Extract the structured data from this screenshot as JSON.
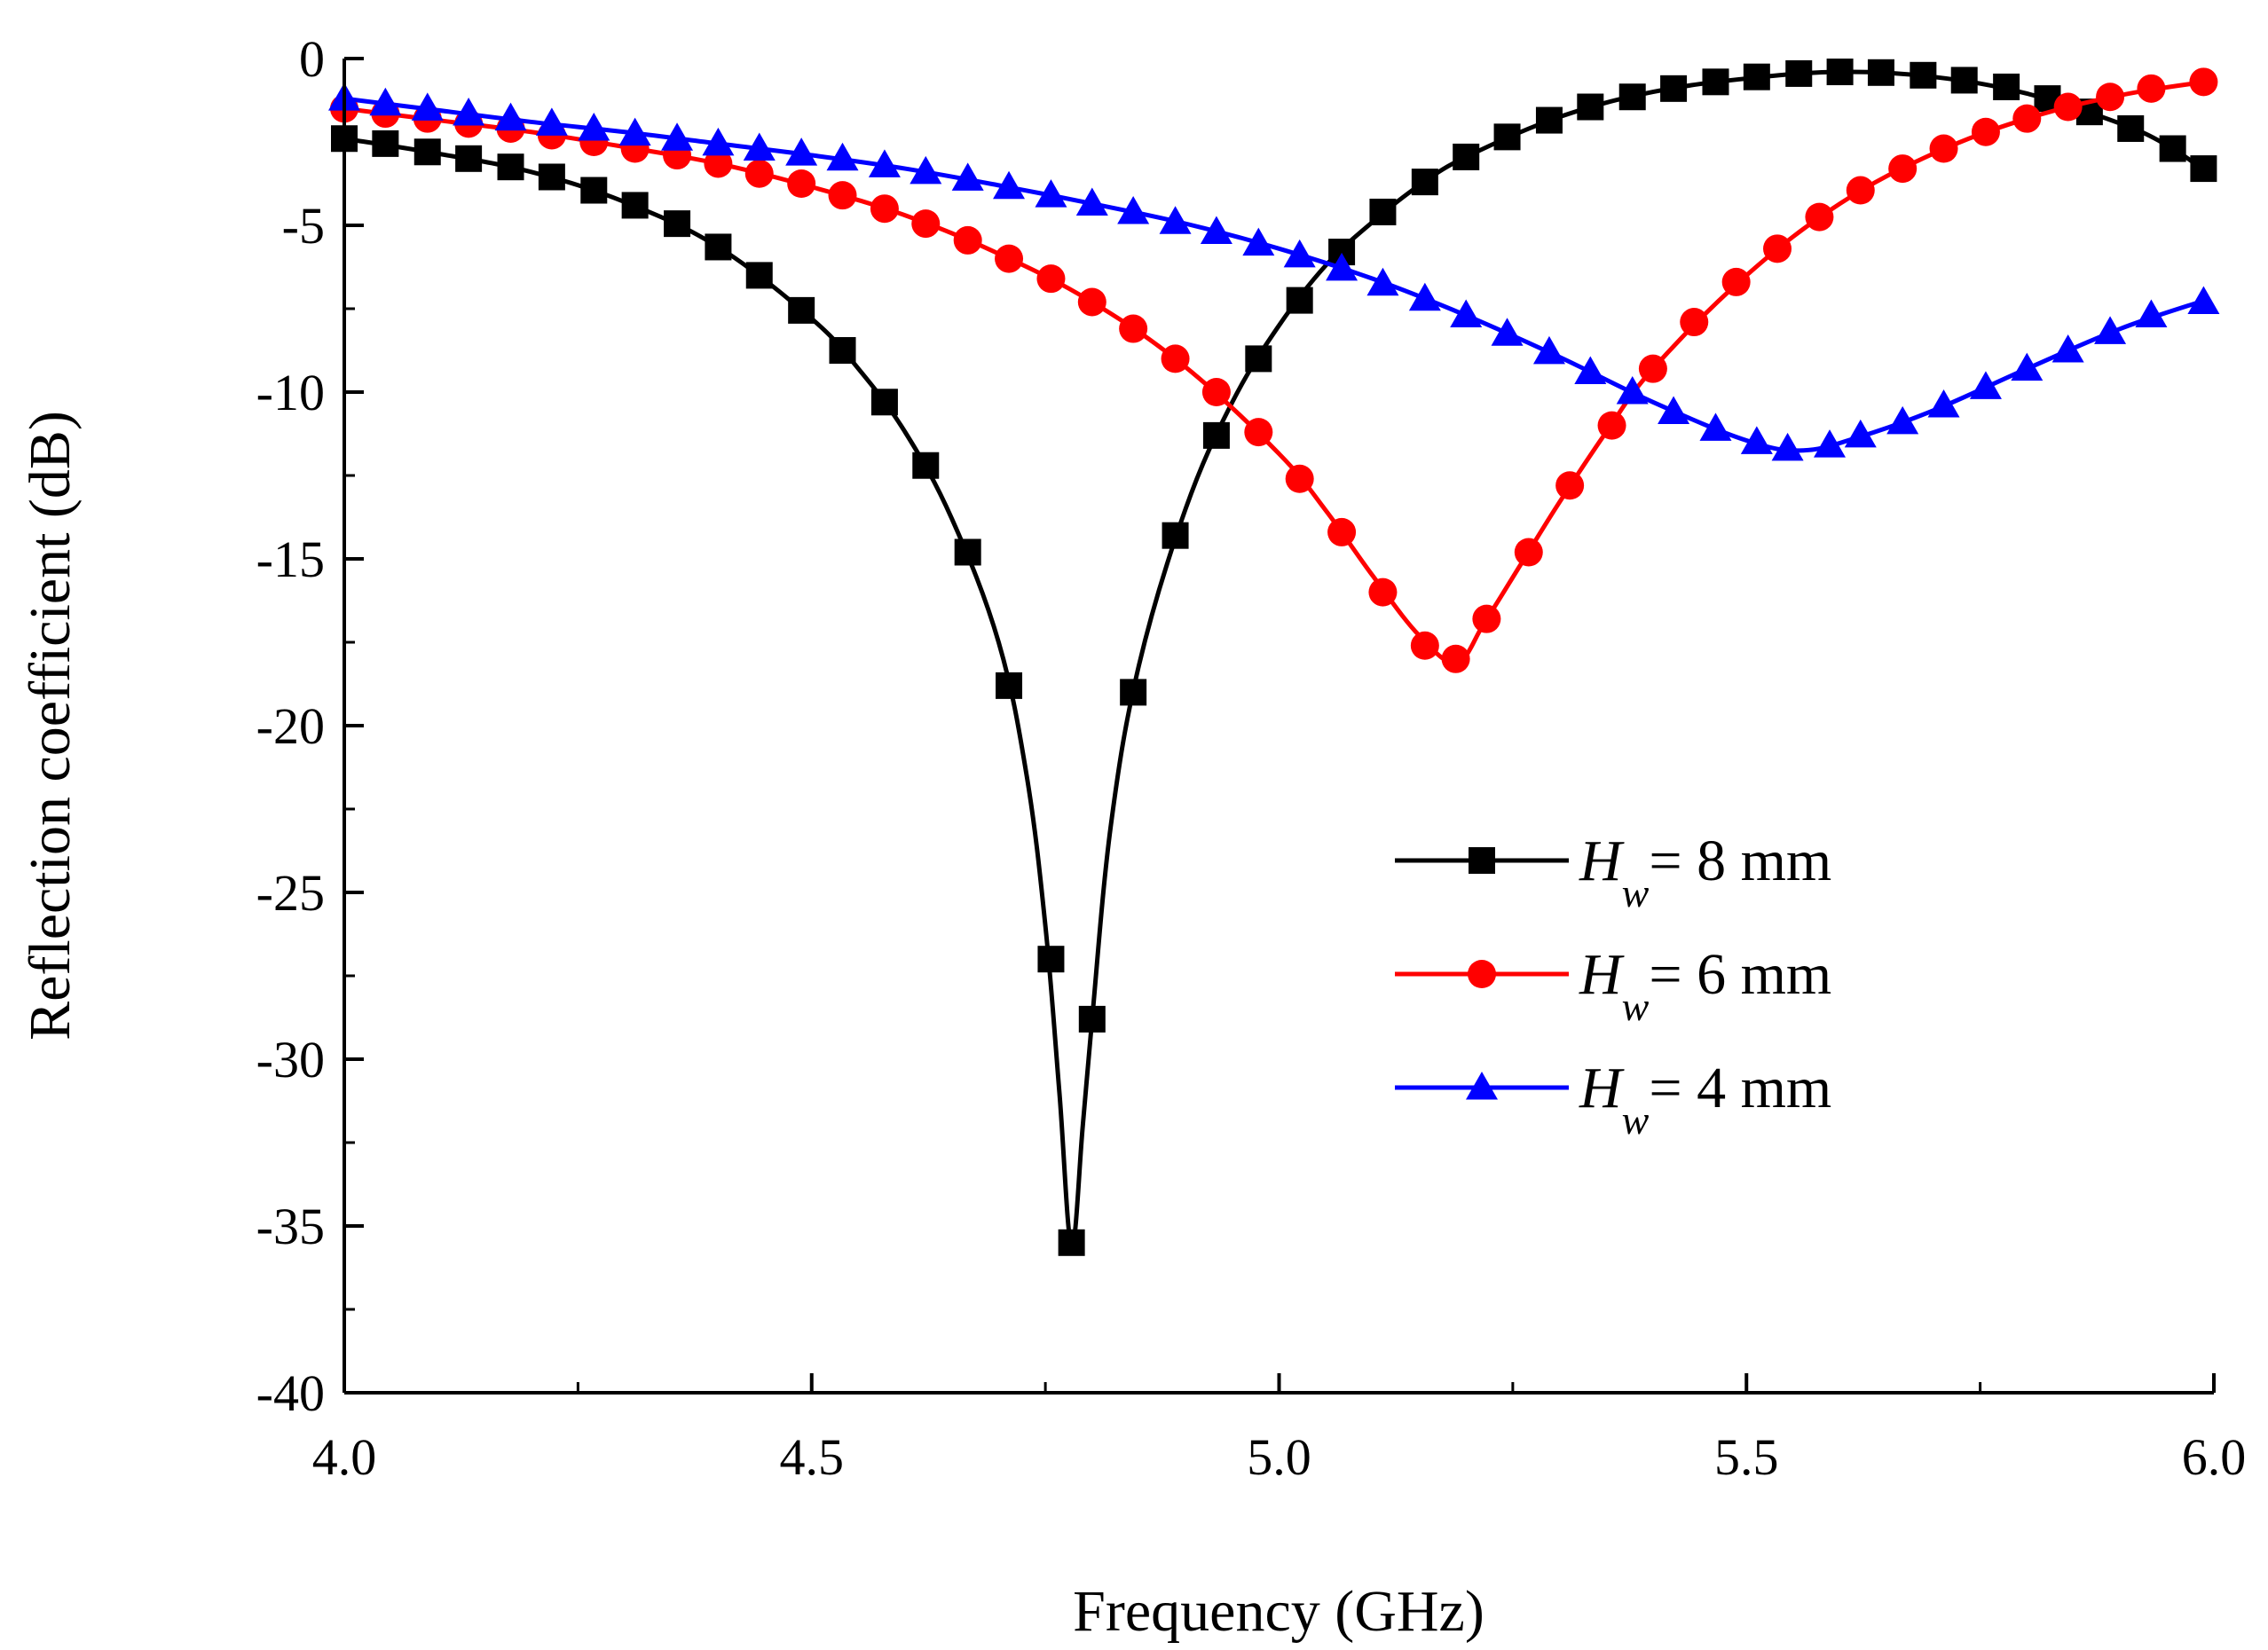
{
  "chart_data": {
    "type": "line",
    "title": "",
    "xlabel": "Frequency (GHz)",
    "ylabel": "Reflection coefficient (dB)",
    "xlim": [
      4.0,
      6.0
    ],
    "ylim": [
      -40,
      0
    ],
    "x_ticks": [
      4.0,
      4.5,
      5.0,
      5.5,
      6.0
    ],
    "x_tick_labels": [
      "4.0",
      "4.5",
      "5.0",
      "5.5",
      "6.0"
    ],
    "y_ticks": [
      0,
      -5,
      -10,
      -15,
      -20,
      -25,
      -30,
      -35,
      -40
    ],
    "y_tick_labels": [
      "0",
      "-5",
      "-10",
      "-15",
      "-20",
      "-25",
      "-30",
      "-35",
      "-40"
    ],
    "legend_position": "center-right",
    "series": [
      {
        "name": "Hw = 8 mm",
        "label_var": "H",
        "label_sub": "w",
        "label_rest": "= 8 mm",
        "color": "#000000",
        "marker": "square",
        "markers": [
          [
            4.0,
            -2.4
          ],
          [
            4.044,
            -2.55
          ],
          [
            4.089,
            -2.8
          ],
          [
            4.133,
            -3.0
          ],
          [
            4.178,
            -3.25
          ],
          [
            4.222,
            -3.55
          ],
          [
            4.267,
            -3.95
          ],
          [
            4.311,
            -4.4
          ],
          [
            4.356,
            -4.95
          ],
          [
            4.4,
            -5.65
          ],
          [
            4.444,
            -6.5
          ],
          [
            4.489,
            -7.55
          ],
          [
            4.533,
            -8.75
          ],
          [
            4.578,
            -10.3
          ],
          [
            4.622,
            -12.2
          ],
          [
            4.667,
            -14.8
          ],
          [
            4.711,
            -18.8
          ],
          [
            4.756,
            -27.0
          ],
          [
            4.778,
            -35.5
          ],
          [
            4.8,
            -28.8
          ],
          [
            4.844,
            -19.0
          ],
          [
            4.889,
            -14.3
          ],
          [
            4.933,
            -11.3
          ],
          [
            4.978,
            -9.0
          ],
          [
            5.022,
            -7.25
          ],
          [
            5.067,
            -5.8
          ],
          [
            5.111,
            -4.6
          ],
          [
            5.156,
            -3.7
          ],
          [
            5.2,
            -2.95
          ],
          [
            5.244,
            -2.35
          ],
          [
            5.289,
            -1.85
          ],
          [
            5.333,
            -1.45
          ],
          [
            5.378,
            -1.15
          ],
          [
            5.422,
            -0.9
          ],
          [
            5.467,
            -0.7
          ],
          [
            5.511,
            -0.55
          ],
          [
            5.556,
            -0.45
          ],
          [
            5.6,
            -0.4
          ],
          [
            5.644,
            -0.42
          ],
          [
            5.689,
            -0.5
          ],
          [
            5.733,
            -0.65
          ],
          [
            5.778,
            -0.85
          ],
          [
            5.822,
            -1.2
          ],
          [
            5.867,
            -1.6
          ],
          [
            5.911,
            -2.1
          ],
          [
            5.956,
            -2.7
          ],
          [
            5.989,
            -3.3
          ]
        ],
        "curve": [
          [
            4.0,
            -2.4
          ],
          [
            4.1,
            -2.85
          ],
          [
            4.2,
            -3.4
          ],
          [
            4.3,
            -4.3
          ],
          [
            4.4,
            -5.65
          ],
          [
            4.5,
            -7.8
          ],
          [
            4.55,
            -9.3
          ],
          [
            4.6,
            -11.2
          ],
          [
            4.65,
            -13.8
          ],
          [
            4.7,
            -17.5
          ],
          [
            4.73,
            -21.5
          ],
          [
            4.75,
            -26.0
          ],
          [
            4.765,
            -31.0
          ],
          [
            4.778,
            -35.6
          ],
          [
            4.79,
            -32.0
          ],
          [
            4.8,
            -28.8
          ],
          [
            4.82,
            -23.0
          ],
          [
            4.85,
            -18.2
          ],
          [
            4.9,
            -13.5
          ],
          [
            4.95,
            -10.3
          ],
          [
            5.0,
            -8.0
          ],
          [
            5.05,
            -6.2
          ],
          [
            5.1,
            -4.9
          ],
          [
            5.15,
            -3.8
          ],
          [
            5.2,
            -2.95
          ],
          [
            5.3,
            -1.75
          ],
          [
            5.4,
            -1.0
          ],
          [
            5.5,
            -0.6
          ],
          [
            5.6,
            -0.4
          ],
          [
            5.7,
            -0.55
          ],
          [
            5.8,
            -1.05
          ],
          [
            5.9,
            -1.95
          ],
          [
            5.95,
            -2.6
          ],
          [
            5.99,
            -3.35
          ]
        ]
      },
      {
        "name": "Hw = 6 mm",
        "label_var": "H",
        "label_sub": "w",
        "label_rest": "= 6 mm",
        "color": "#ff0000",
        "marker": "circle",
        "markers": [
          [
            4.0,
            -1.5
          ],
          [
            4.044,
            -1.65
          ],
          [
            4.089,
            -1.8
          ],
          [
            4.133,
            -1.95
          ],
          [
            4.178,
            -2.1
          ],
          [
            4.222,
            -2.3
          ],
          [
            4.267,
            -2.5
          ],
          [
            4.311,
            -2.7
          ],
          [
            4.356,
            -2.9
          ],
          [
            4.4,
            -3.15
          ],
          [
            4.444,
            -3.45
          ],
          [
            4.489,
            -3.75
          ],
          [
            4.533,
            -4.1
          ],
          [
            4.578,
            -4.5
          ],
          [
            4.622,
            -4.95
          ],
          [
            4.667,
            -5.45
          ],
          [
            4.711,
            -6.0
          ],
          [
            4.756,
            -6.6
          ],
          [
            4.8,
            -7.3
          ],
          [
            4.844,
            -8.1
          ],
          [
            4.889,
            -9.0
          ],
          [
            4.933,
            -10.0
          ],
          [
            4.978,
            -11.2
          ],
          [
            5.022,
            -12.6
          ],
          [
            5.067,
            -14.2
          ],
          [
            5.111,
            -16.0
          ],
          [
            5.156,
            -17.6
          ],
          [
            5.189,
            -18.0
          ],
          [
            5.222,
            -16.8
          ],
          [
            5.267,
            -14.8
          ],
          [
            5.311,
            -12.8
          ],
          [
            5.356,
            -11.0
          ],
          [
            5.4,
            -9.3
          ],
          [
            5.444,
            -7.9
          ],
          [
            5.489,
            -6.7
          ],
          [
            5.533,
            -5.7
          ],
          [
            5.578,
            -4.75
          ],
          [
            5.622,
            -3.95
          ],
          [
            5.667,
            -3.3
          ],
          [
            5.711,
            -2.7
          ],
          [
            5.756,
            -2.2
          ],
          [
            5.8,
            -1.8
          ],
          [
            5.844,
            -1.45
          ],
          [
            5.889,
            -1.15
          ],
          [
            5.933,
            -0.9
          ],
          [
            5.989,
            -0.7
          ]
        ],
        "curve": [
          [
            4.0,
            -1.5
          ],
          [
            4.1,
            -1.85
          ],
          [
            4.2,
            -2.2
          ],
          [
            4.3,
            -2.65
          ],
          [
            4.4,
            -3.15
          ],
          [
            4.5,
            -3.85
          ],
          [
            4.6,
            -4.7
          ],
          [
            4.7,
            -5.85
          ],
          [
            4.8,
            -7.3
          ],
          [
            4.9,
            -9.25
          ],
          [
            5.0,
            -11.85
          ],
          [
            5.05,
            -13.55
          ],
          [
            5.1,
            -15.5
          ],
          [
            5.15,
            -17.3
          ],
          [
            5.19,
            -18.1
          ],
          [
            5.22,
            -16.9
          ],
          [
            5.26,
            -15.1
          ],
          [
            5.3,
            -13.3
          ],
          [
            5.35,
            -11.2
          ],
          [
            5.4,
            -9.3
          ],
          [
            5.5,
            -6.5
          ],
          [
            5.6,
            -4.35
          ],
          [
            5.7,
            -2.85
          ],
          [
            5.8,
            -1.8
          ],
          [
            5.9,
            -1.1
          ],
          [
            5.99,
            -0.7
          ]
        ]
      },
      {
        "name": "Hw = 4 mm",
        "label_var": "H",
        "label_sub": "w",
        "label_rest": "= 4 mm",
        "color": "#0000ff",
        "marker": "triangle",
        "markers": [
          [
            4.0,
            -1.2
          ],
          [
            4.044,
            -1.35
          ],
          [
            4.089,
            -1.5
          ],
          [
            4.133,
            -1.65
          ],
          [
            4.178,
            -1.8
          ],
          [
            4.222,
            -1.95
          ],
          [
            4.267,
            -2.1
          ],
          [
            4.311,
            -2.25
          ],
          [
            4.356,
            -2.4
          ],
          [
            4.4,
            -2.55
          ],
          [
            4.444,
            -2.7
          ],
          [
            4.489,
            -2.85
          ],
          [
            4.533,
            -3.0
          ],
          [
            4.578,
            -3.2
          ],
          [
            4.622,
            -3.4
          ],
          [
            4.667,
            -3.6
          ],
          [
            4.711,
            -3.85
          ],
          [
            4.756,
            -4.1
          ],
          [
            4.8,
            -4.35
          ],
          [
            4.844,
            -4.6
          ],
          [
            4.889,
            -4.9
          ],
          [
            4.933,
            -5.2
          ],
          [
            4.978,
            -5.55
          ],
          [
            5.022,
            -5.9
          ],
          [
            5.067,
            -6.3
          ],
          [
            5.111,
            -6.75
          ],
          [
            5.156,
            -7.2
          ],
          [
            5.2,
            -7.7
          ],
          [
            5.244,
            -8.25
          ],
          [
            5.289,
            -8.8
          ],
          [
            5.333,
            -9.4
          ],
          [
            5.378,
            -10.0
          ],
          [
            5.422,
            -10.6
          ],
          [
            5.467,
            -11.1
          ],
          [
            5.511,
            -11.5
          ],
          [
            5.544,
            -11.7
          ],
          [
            5.589,
            -11.6
          ],
          [
            5.622,
            -11.3
          ],
          [
            5.667,
            -10.9
          ],
          [
            5.711,
            -10.4
          ],
          [
            5.756,
            -9.85
          ],
          [
            5.8,
            -9.3
          ],
          [
            5.844,
            -8.75
          ],
          [
            5.889,
            -8.2
          ],
          [
            5.933,
            -7.7
          ],
          [
            5.989,
            -7.3
          ]
        ],
        "curve": [
          [
            4.0,
            -1.2
          ],
          [
            4.1,
            -1.55
          ],
          [
            4.2,
            -1.9
          ],
          [
            4.3,
            -2.2
          ],
          [
            4.4,
            -2.55
          ],
          [
            4.5,
            -2.9
          ],
          [
            4.6,
            -3.3
          ],
          [
            4.7,
            -3.8
          ],
          [
            4.8,
            -4.35
          ],
          [
            4.9,
            -4.95
          ],
          [
            5.0,
            -5.7
          ],
          [
            5.1,
            -6.6
          ],
          [
            5.2,
            -7.7
          ],
          [
            5.3,
            -8.95
          ],
          [
            5.4,
            -10.3
          ],
          [
            5.5,
            -11.45
          ],
          [
            5.56,
            -11.75
          ],
          [
            5.62,
            -11.35
          ],
          [
            5.7,
            -10.55
          ],
          [
            5.8,
            -9.3
          ],
          [
            5.9,
            -8.1
          ],
          [
            5.99,
            -7.25
          ]
        ]
      }
    ]
  }
}
